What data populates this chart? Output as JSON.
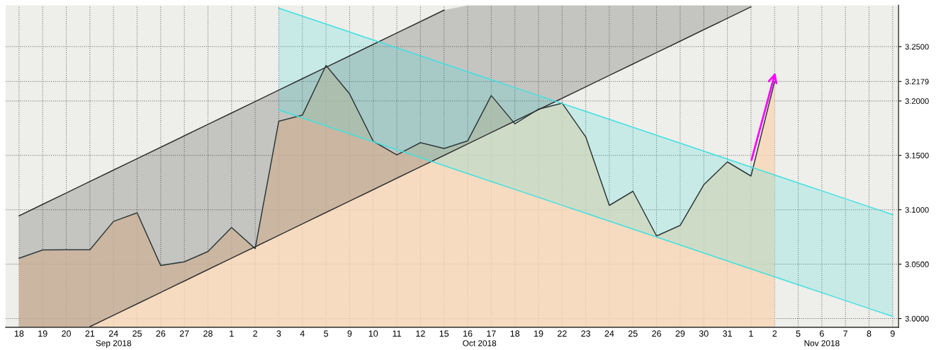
{
  "chart_data": {
    "type": "area",
    "categories": [
      "18",
      "19",
      "20",
      "21",
      "24",
      "25",
      "26",
      "27",
      "28",
      "1",
      "2",
      "3",
      "4",
      "5",
      "9",
      "10",
      "11",
      "12",
      "15",
      "16",
      "17",
      "18",
      "19",
      "22",
      "23",
      "24",
      "25",
      "26",
      "29",
      "30",
      "31",
      "1",
      "2",
      "5",
      "6",
      "7",
      "8",
      "9"
    ],
    "series": [
      {
        "type": "line",
        "color": "#333333",
        "values": [
          3.0945,
          3.105,
          3.1155,
          3.126,
          3.1365,
          3.147,
          3.1575,
          3.168,
          3.1785,
          3.189,
          3.1995,
          3.21,
          3.2205,
          3.231,
          3.2415,
          3.252,
          3.2625,
          3.273,
          3.2835,
          null,
          null,
          null,
          null,
          null,
          null,
          null,
          null,
          null,
          null,
          null,
          null,
          null,
          null,
          null,
          null,
          null,
          null,
          null
        ]
      },
      {
        "type": "line",
        "color": "#333333",
        "values": [
          null,
          null,
          null,
          2.9925,
          3.003,
          3.0135,
          3.024,
          3.0345,
          3.045,
          3.0555,
          3.066,
          3.0765,
          3.087,
          3.0975,
          3.108,
          3.1185,
          3.129,
          3.1395,
          3.15,
          3.1605,
          3.171,
          3.1815,
          3.192,
          3.2025,
          3.213,
          3.2235,
          3.234,
          3.2445,
          3.255,
          3.2655,
          3.276,
          3.2865,
          null,
          null,
          null,
          null,
          null,
          null
        ],
        "lower": [
          2.992,
          2.992,
          2.992,
          2.9925,
          3.003,
          3.0135,
          3.024,
          3.0345,
          3.045,
          3.0555,
          3.066,
          3.0765,
          3.087,
          3.0975,
          3.108,
          3.1185,
          3.129,
          3.1395,
          3.15,
          3.1605,
          3.171,
          3.1815,
          3.192,
          3.2025,
          3.213,
          3.2235,
          3.234,
          3.2445,
          3.255,
          3.2655,
          3.276,
          3.2865,
          null,
          null,
          null,
          null,
          null,
          null
        ],
        "upper": [
          3.0945,
          3.105,
          3.1155,
          3.126,
          3.1365,
          3.147,
          3.1575,
          3.168,
          3.1785,
          3.189,
          3.1995,
          3.21,
          3.2205,
          3.231,
          3.2415,
          3.252,
          3.2625,
          3.273,
          3.2835,
          3.288,
          3.288,
          3.288,
          3.288,
          3.288,
          3.288,
          3.288,
          3.288,
          3.288,
          3.288,
          3.288,
          3.288,
          3.288,
          null,
          null,
          null,
          null,
          null,
          null
        ]
      },
      {
        "type": "line",
        "color": "#40e0e0",
        "values": [
          null,
          null,
          null,
          null,
          null,
          null,
          null,
          null,
          null,
          null,
          null,
          3.2853,
          3.278,
          3.2707,
          3.2634,
          3.2561,
          3.2488,
          3.2415,
          3.2342,
          3.2269,
          3.2196,
          3.2123,
          3.205,
          3.1977,
          3.1904,
          3.1831,
          3.1758,
          3.1685,
          3.1612,
          3.1539,
          3.1466,
          3.1393,
          3.132,
          3.1247,
          3.1174,
          3.1101,
          3.1028,
          3.0955
        ]
      },
      {
        "type": "line",
        "color": "#40e0e0",
        "values": [
          null,
          null,
          null,
          null,
          null,
          null,
          null,
          null,
          null,
          null,
          null,
          3.1917,
          3.1844,
          3.1771,
          3.1698,
          3.1625,
          3.1552,
          3.1479,
          3.1406,
          3.1333,
          3.126,
          3.1187,
          3.1114,
          3.1041,
          3.0968,
          3.0895,
          3.0822,
          3.0749,
          3.0676,
          3.0603,
          3.053,
          3.0457,
          3.0384,
          3.0311,
          3.0238,
          3.0165,
          3.0092,
          3.0019
        ],
        "lower": [
          null,
          null,
          null,
          null,
          null,
          null,
          null,
          null,
          null,
          null,
          null,
          3.1917,
          3.1844,
          3.1771,
          3.1698,
          3.1625,
          3.1552,
          3.1479,
          3.1406,
          3.1333,
          3.126,
          3.1187,
          3.1114,
          3.1041,
          3.0968,
          3.0895,
          3.0822,
          3.0749,
          3.0676,
          3.0603,
          3.053,
          3.0457,
          3.0384,
          3.0311,
          3.0238,
          3.0165,
          3.0092,
          3.0019
        ],
        "upper": [
          null,
          null,
          null,
          null,
          null,
          null,
          null,
          null,
          null,
          null,
          null,
          3.2853,
          3.278,
          3.2707,
          3.2634,
          3.2561,
          3.2488,
          3.2415,
          3.2342,
          3.2269,
          3.2196,
          3.2123,
          3.205,
          3.1977,
          3.1904,
          3.1831,
          3.1758,
          3.1685,
          3.1612,
          3.1539,
          3.1466,
          3.1393,
          3.132,
          3.1247,
          3.1174,
          3.1101,
          3.1028,
          3.0955
        ]
      },
      {
        "color": "#f7d6b5",
        "values": [
          3.0554,
          3.063,
          3.0632,
          3.0632,
          3.0893,
          3.0972,
          3.0487,
          3.0522,
          3.0616,
          3.0837,
          3.0643,
          3.1814,
          3.187,
          3.2327,
          3.2065,
          3.163,
          3.1504,
          3.1617,
          3.1563,
          3.1633,
          3.205,
          3.179,
          3.1925,
          3.198,
          3.167,
          3.104,
          3.117,
          3.0759,
          3.0856,
          3.123,
          3.144,
          3.131,
          3.2179,
          null,
          null,
          null,
          null,
          null
        ]
      }
    ],
    "ylim": [
      2.992,
      3.288
    ],
    "yticks": [
      {
        "value": 3.0,
        "label": "3.0000"
      },
      {
        "value": 3.05,
        "label": "3.0500"
      },
      {
        "value": 3.1,
        "label": "3.1000"
      },
      {
        "value": 3.15,
        "label": "3.1500"
      },
      {
        "value": 3.2,
        "label": "3.2000"
      },
      {
        "value": 3.2179,
        "label": "3.2179"
      },
      {
        "value": 3.25,
        "label": "3.2500"
      }
    ],
    "grid": true,
    "annotations": [
      "Sep 2018",
      "Oct 2018",
      "Nov 2018"
    ]
  }
}
